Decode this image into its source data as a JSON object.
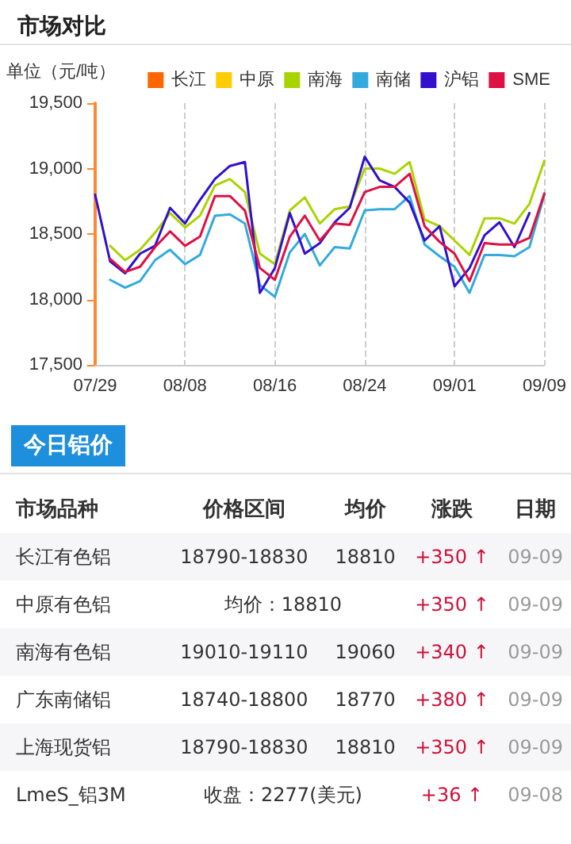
{
  "chart_data": [
    {
      "type": "line",
      "title": "市场对比",
      "ylabel": "单位（元/吨）",
      "categories": [
        "07/29",
        null,
        null,
        null,
        null,
        null,
        "08/08",
        null,
        null,
        null,
        null,
        null,
        "08/16",
        null,
        null,
        null,
        null,
        null,
        "08/24",
        null,
        null,
        null,
        null,
        null,
        "09/01",
        null,
        null,
        null,
        null,
        null,
        "09/09"
      ],
      "series": [
        {
          "name": "长江",
          "color": "#ff6600",
          "values": [
            null,
            null,
            null,
            null,
            null,
            null,
            null,
            null,
            null,
            null,
            null,
            null,
            null,
            null,
            null,
            null,
            null,
            null,
            null,
            null,
            null,
            null,
            null,
            null,
            null,
            null,
            null,
            null,
            null,
            null,
            null
          ]
        },
        {
          "name": "中原",
          "color": "#ffcc00",
          "values": [
            null,
            null,
            null,
            null,
            null,
            null,
            null,
            null,
            null,
            null,
            null,
            null,
            null,
            null,
            null,
            null,
            null,
            null,
            null,
            null,
            null,
            null,
            null,
            null,
            null,
            null,
            null,
            null,
            null,
            null,
            null
          ]
        },
        {
          "name": "南海",
          "color": "#aad400",
          "values": [
            null,
            18410,
            18300,
            18380,
            18510,
            18660,
            18550,
            18640,
            18870,
            18920,
            18820,
            18350,
            18270,
            18680,
            18780,
            18580,
            18690,
            18710,
            19000,
            19000,
            18960,
            19050,
            18610,
            18560,
            18450,
            18340,
            18620,
            18620,
            18580,
            18730,
            19060
          ]
        },
        {
          "name": "南储",
          "color": "#33aadd",
          "values": [
            null,
            18150,
            18090,
            18140,
            18300,
            18380,
            18270,
            18340,
            18640,
            18650,
            18580,
            18110,
            18020,
            18360,
            18500,
            18260,
            18400,
            18390,
            18680,
            18690,
            18690,
            18790,
            18420,
            18330,
            18250,
            18050,
            18340,
            18340,
            18330,
            18400,
            18800
          ]
        },
        {
          "name": "沪铝",
          "color": "#3311cc",
          "values": [
            18800,
            18290,
            18200,
            18350,
            18410,
            18700,
            18580,
            18760,
            18920,
            19020,
            19050,
            18050,
            18240,
            18660,
            18350,
            18430,
            18590,
            18700,
            19090,
            18910,
            18860,
            18740,
            18450,
            18560,
            18100,
            18240,
            18490,
            18590,
            18400,
            18660,
            null
          ]
        },
        {
          "name": "SME",
          "color": "#dd1144",
          "values": [
            null,
            18310,
            18210,
            18250,
            18400,
            18520,
            18410,
            18480,
            18790,
            18790,
            18680,
            18240,
            18150,
            18480,
            18640,
            18450,
            18580,
            18570,
            18820,
            18860,
            18860,
            18960,
            18560,
            18440,
            18350,
            18140,
            18430,
            18420,
            18420,
            18470,
            18810
          ]
        }
      ],
      "ylim": [
        17500,
        19500
      ],
      "yticks": [
        {
          "value": 17500,
          "label": "17,500"
        },
        {
          "value": 18000,
          "label": "18,000"
        },
        {
          "value": 18500,
          "label": "18,500"
        },
        {
          "value": 19000,
          "label": "19,000"
        },
        {
          "value": 19500,
          "label": "19,500"
        }
      ],
      "grid": "x",
      "legend": "top right",
      "marker": "none",
      "line_style": "solid"
    },
    {
      "type": "other",
      "title": "今日铝价",
      "categories": [
        "市场品种",
        "价格区间",
        "均价",
        "涨跌",
        "日期"
      ],
      "y_categories": [
        "长江有色铝",
        "中原有色铝",
        "南海有色铝",
        "广东南储铝",
        "上海现货铝",
        "LmeS_铝3M"
      ],
      "cell_labels": [
        [
          "18790-18830",
          "18810",
          "+350 ↑",
          "09-09"
        ],
        [
          "均价：18810",
          null,
          "+350 ↑",
          "09-09"
        ],
        [
          "19010-19110",
          "19060",
          "+340 ↑",
          "09-09"
        ],
        [
          "18740-18800",
          "18770",
          "+380 ↑",
          "09-09"
        ],
        [
          "18790-18830",
          "18810",
          "+350 ↑",
          "09-09"
        ],
        [
          "收盘：2277(美元)",
          null,
          "+36 ↑",
          "09-08"
        ]
      ]
    }
  ]
}
